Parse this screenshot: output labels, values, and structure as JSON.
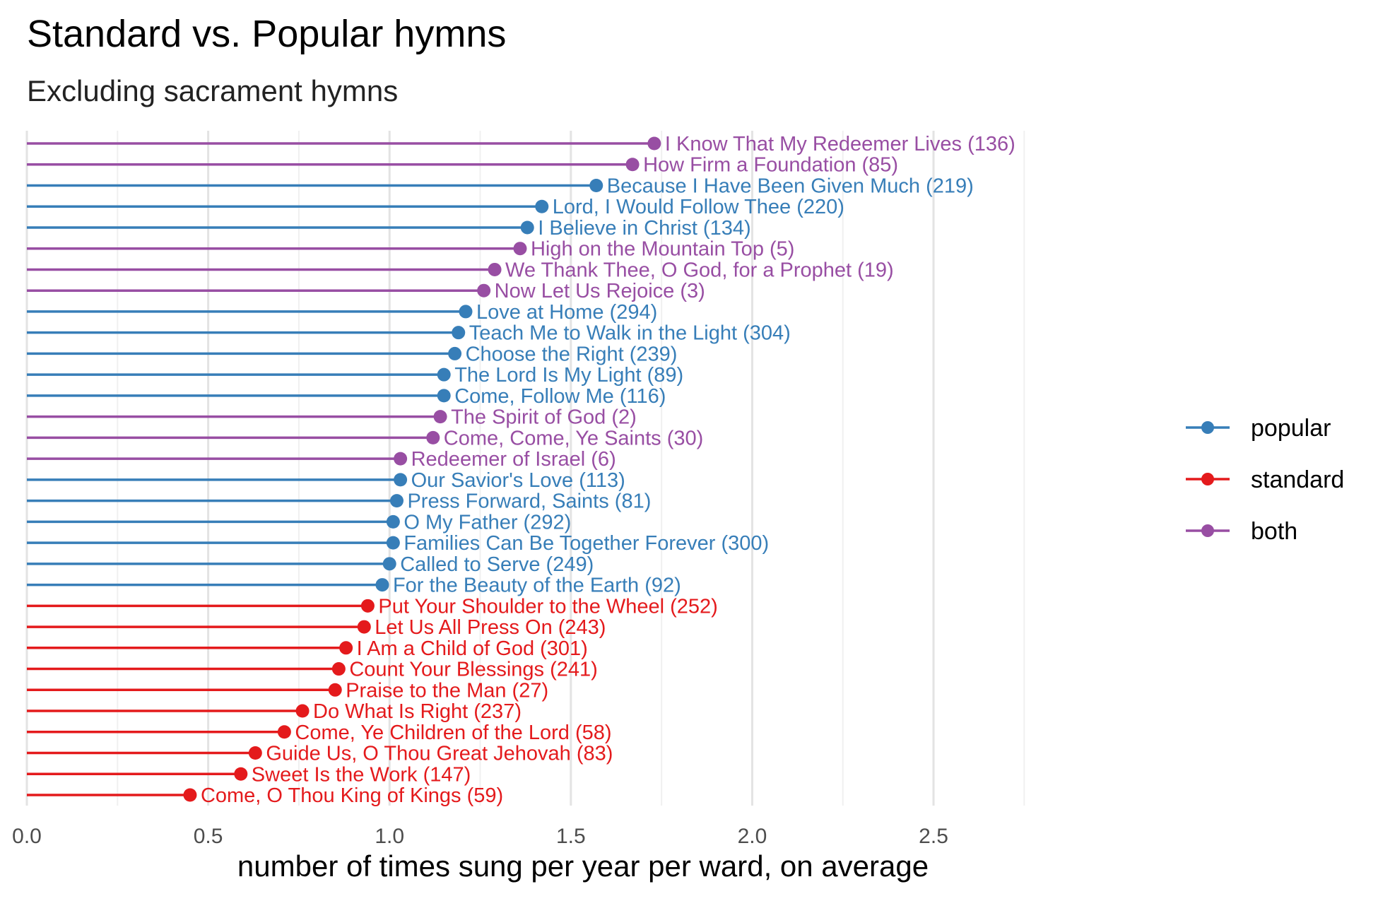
{
  "chart_data": {
    "type": "lollipop",
    "title": "Standard vs. Popular hymns",
    "subtitle": "Excluding sacrament hymns",
    "xlabel": "number of times sung per year per ward, on average",
    "xlim": [
      0,
      2.8
    ],
    "xticks": [
      0.0,
      0.5,
      1.0,
      1.5,
      2.0,
      2.5
    ],
    "xtick_labels": [
      "0.0",
      "0.5",
      "1.0",
      "1.5",
      "2.0",
      "2.5"
    ],
    "grid": true,
    "legend_position": "right",
    "legend": [
      {
        "key": "popular",
        "label": "popular",
        "color": "#377EB8"
      },
      {
        "key": "standard",
        "label": "standard",
        "color": "#E41A1C"
      },
      {
        "key": "both",
        "label": "both",
        "color": "#984EA3"
      }
    ],
    "points": [
      {
        "label": "I Know That My Redeemer Lives (136)",
        "value": 1.73,
        "group": "both"
      },
      {
        "label": "How Firm a Foundation (85)",
        "value": 1.67,
        "group": "both"
      },
      {
        "label": "Because I Have Been Given Much (219)",
        "value": 1.57,
        "group": "popular"
      },
      {
        "label": "Lord, I Would Follow Thee (220)",
        "value": 1.42,
        "group": "popular"
      },
      {
        "label": "I Believe in Christ (134)",
        "value": 1.38,
        "group": "popular"
      },
      {
        "label": "High on the Mountain Top (5)",
        "value": 1.36,
        "group": "both"
      },
      {
        "label": "We Thank Thee, O God, for a Prophet (19)",
        "value": 1.29,
        "group": "both"
      },
      {
        "label": "Now Let Us Rejoice (3)",
        "value": 1.26,
        "group": "both"
      },
      {
        "label": "Love at Home (294)",
        "value": 1.21,
        "group": "popular"
      },
      {
        "label": "Teach Me to Walk in the Light (304)",
        "value": 1.19,
        "group": "popular"
      },
      {
        "label": "Choose the Right (239)",
        "value": 1.18,
        "group": "popular"
      },
      {
        "label": "The Lord Is My Light (89)",
        "value": 1.15,
        "group": "popular"
      },
      {
        "label": "Come, Follow Me (116)",
        "value": 1.15,
        "group": "popular"
      },
      {
        "label": "The Spirit of God (2)",
        "value": 1.14,
        "group": "both"
      },
      {
        "label": "Come, Come, Ye Saints (30)",
        "value": 1.12,
        "group": "both"
      },
      {
        "label": "Redeemer of Israel (6)",
        "value": 1.03,
        "group": "both"
      },
      {
        "label": "Our Savior's Love (113)",
        "value": 1.03,
        "group": "popular"
      },
      {
        "label": "Press Forward, Saints (81)",
        "value": 1.02,
        "group": "popular"
      },
      {
        "label": "O My Father (292)",
        "value": 1.01,
        "group": "popular"
      },
      {
        "label": "Families Can Be Together Forever (300)",
        "value": 1.01,
        "group": "popular"
      },
      {
        "label": "Called to Serve (249)",
        "value": 1.0,
        "group": "popular"
      },
      {
        "label": "For the Beauty of the Earth (92)",
        "value": 0.98,
        "group": "popular"
      },
      {
        "label": "Put Your Shoulder to the Wheel (252)",
        "value": 0.94,
        "group": "standard"
      },
      {
        "label": "Let Us All Press On (243)",
        "value": 0.93,
        "group": "standard"
      },
      {
        "label": "I Am a Child of God (301)",
        "value": 0.88,
        "group": "standard"
      },
      {
        "label": "Count Your Blessings (241)",
        "value": 0.86,
        "group": "standard"
      },
      {
        "label": "Praise to the Man (27)",
        "value": 0.85,
        "group": "standard"
      },
      {
        "label": "Do What Is Right (237)",
        "value": 0.76,
        "group": "standard"
      },
      {
        "label": "Come, Ye Children of the Lord (58)",
        "value": 0.71,
        "group": "standard"
      },
      {
        "label": "Guide Us, O Thou Great Jehovah (83)",
        "value": 0.63,
        "group": "standard"
      },
      {
        "label": "Sweet Is the Work (147)",
        "value": 0.59,
        "group": "standard"
      },
      {
        "label": "Come, O Thou King of Kings (59)",
        "value": 0.45,
        "group": "standard"
      }
    ]
  }
}
